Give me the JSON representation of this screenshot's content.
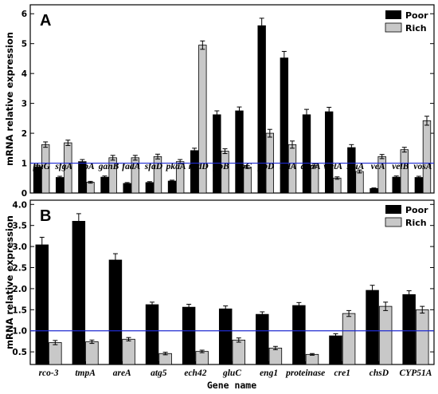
{
  "chart_data": [
    {
      "type": "bar",
      "panel": "A",
      "categories": [
        "fluG",
        "sfgA",
        "flbA",
        "ganB",
        "fadA",
        "sfaD",
        "pkaA",
        "nsdD",
        "flbB",
        "flbC",
        "flbD",
        "brlA",
        "abaA",
        "wetA",
        "stuA",
        "veA",
        "velB",
        "vosA"
      ],
      "series": [
        {
          "name": "Poor",
          "color": "#000000",
          "values": [
            0.88,
            0.52,
            1.05,
            0.53,
            0.32,
            0.35,
            0.4,
            1.42,
            2.62,
            2.75,
            5.6,
            4.52,
            2.62,
            2.72,
            1.52,
            0.15,
            0.53,
            0.52
          ],
          "errors": [
            0.05,
            0.04,
            0.07,
            0.04,
            0.03,
            0.03,
            0.03,
            0.08,
            0.13,
            0.13,
            0.25,
            0.22,
            0.18,
            0.15,
            0.1,
            0.02,
            0.04,
            0.04
          ]
        },
        {
          "name": "Rich",
          "color": "#c8c8c8",
          "values": [
            1.62,
            1.68,
            0.36,
            1.18,
            1.18,
            1.22,
            1.05,
            4.95,
            1.4,
            0.87,
            2.0,
            1.62,
            0.92,
            0.5,
            0.72,
            1.22,
            1.45,
            2.42
          ],
          "errors": [
            0.09,
            0.09,
            0.03,
            0.08,
            0.08,
            0.08,
            0.07,
            0.14,
            0.08,
            0.05,
            0.13,
            0.12,
            0.06,
            0.04,
            0.05,
            0.07,
            0.08,
            0.15
          ]
        }
      ],
      "ylim": [
        0,
        6.3
      ],
      "yticks": [
        0,
        1,
        2,
        3,
        4,
        5,
        6
      ],
      "reference_line": 1,
      "xlabel": "",
      "ylabel": "mRNA relative expression"
    },
    {
      "type": "bar",
      "panel": "B",
      "categories": [
        "rco-3",
        "tmpA",
        "areA",
        "atg5",
        "ech42",
        "gluC",
        "eng1",
        "proteinase",
        "cre1",
        "chsD",
        "CYP51A"
      ],
      "series": [
        {
          "name": "Poor",
          "color": "#000000",
          "values": [
            3.04,
            3.6,
            2.68,
            1.62,
            1.56,
            1.52,
            1.39,
            1.6,
            0.88,
            1.96,
            1.86
          ],
          "errors": [
            0.18,
            0.18,
            0.15,
            0.06,
            0.07,
            0.07,
            0.06,
            0.07,
            0.05,
            0.12,
            0.09
          ]
        },
        {
          "name": "Rich",
          "color": "#c8c8c8",
          "values": [
            0.72,
            0.74,
            0.8,
            0.46,
            0.51,
            0.78,
            0.59,
            0.44,
            1.41,
            1.58,
            1.5
          ],
          "errors": [
            0.05,
            0.04,
            0.04,
            0.03,
            0.03,
            0.05,
            0.04,
            0.02,
            0.07,
            0.1,
            0.08
          ]
        }
      ],
      "ylim": [
        0.2,
        4.1
      ],
      "yticks": [
        0.5,
        1.0,
        1.5,
        2.0,
        2.5,
        3.0,
        3.5,
        4.0
      ],
      "reference_line": 1,
      "xlabel": "Gene name",
      "ylabel": "mRNA relative expression"
    }
  ],
  "panels": {
    "a": {
      "letter": "A",
      "legend": {
        "poor": "Poor",
        "rich": "Rich"
      }
    },
    "b": {
      "letter": "B",
      "legend": {
        "poor": "Poor",
        "rich": "Rich"
      }
    }
  },
  "labels": {
    "ylabel": "mRNA relative expression",
    "xlabel": "Gene name"
  },
  "colors": {
    "poor": "#000000",
    "rich": "#c8c8c8",
    "reference_line": "#1f2bd1",
    "axis": "#000000"
  }
}
